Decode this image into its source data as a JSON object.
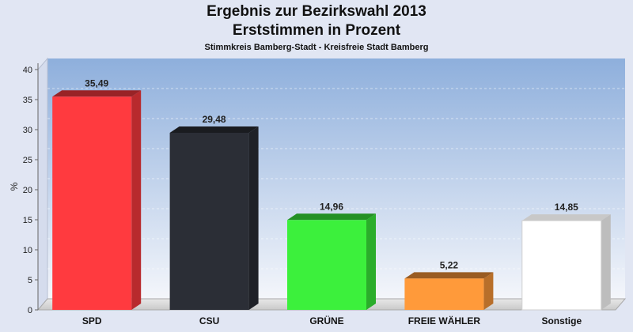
{
  "chart_data": {
    "type": "bar",
    "title": "Ergebnis zur Bezirkswahl 2013",
    "subtitle": "Erststimmen in Prozent",
    "subsubtitle": "Stimmkreis Bamberg-Stadt - Kreisfreie Stadt Bamberg",
    "ylabel": "%",
    "xlabel": "",
    "ylim": [
      0,
      40
    ],
    "yticks": [
      0,
      5,
      10,
      15,
      20,
      25,
      30,
      35,
      40
    ],
    "grid": true,
    "categories": [
      "SPD",
      "CSU",
      "GRÜNE",
      "FREIE WÄHLER",
      "Sonstige"
    ],
    "values": [
      35.49,
      29.48,
      14.96,
      5.22,
      14.85
    ],
    "value_labels": [
      "35,49",
      "29,48",
      "14,96",
      "5,22",
      "14,85"
    ],
    "colors": [
      "#ff3a3f",
      "#2b2e36",
      "#3cf03c",
      "#ff9a3a",
      "#ffffff"
    ]
  }
}
